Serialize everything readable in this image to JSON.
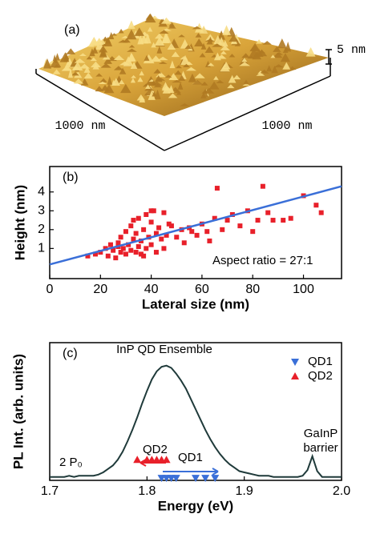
{
  "afm_image": {
    "panel_label": "(a)",
    "x_label": "1000 nm",
    "y_label": "1000 nm",
    "z_label": "5 nm"
  },
  "chart_data": [
    {
      "type": "scatter",
      "panel_label": "(b)",
      "x_label": "Lateral size (nm)",
      "y_label": "Height (nm)",
      "annotation": "Aspect ratio = 27:1",
      "xlim": [
        0,
        115
      ],
      "ylim": [
        -0.6,
        5.35
      ],
      "xticks": [
        0,
        20,
        40,
        60,
        80,
        100
      ],
      "yticks": [
        1,
        2,
        3,
        4
      ],
      "series": [
        {
          "color": "#e8202a",
          "x": [
            15,
            18,
            20,
            22,
            23,
            24,
            25,
            26,
            27,
            28,
            28,
            29,
            30,
            30,
            31,
            32,
            32,
            33,
            34,
            34,
            35,
            35,
            36,
            36,
            37,
            38,
            38,
            39,
            40,
            40,
            41,
            42,
            42,
            43,
            44,
            45,
            45,
            46,
            47,
            48,
            50,
            52,
            53,
            55,
            56,
            58,
            60,
            62,
            63,
            65,
            66,
            68,
            70,
            72,
            75,
            78,
            80,
            82,
            84,
            86,
            88,
            92,
            95,
            100,
            105,
            107,
            40,
            33,
            27,
            37
          ],
          "values": [
            0.6,
            0.7,
            0.8,
            1.0,
            0.6,
            1.2,
            0.9,
            0.5,
            1.3,
            0.8,
            1.6,
            1.0,
            0.7,
            1.9,
            1.2,
            0.9,
            2.2,
            1.5,
            0.8,
            1.8,
            1.1,
            2.6,
            0.7,
            1.4,
            2.0,
            1.0,
            2.8,
            1.6,
            1.2,
            2.4,
            3.0,
            1.8,
            0.8,
            2.1,
            1.5,
            2.9,
            1.0,
            1.7,
            2.3,
            2.2,
            1.6,
            2.0,
            1.3,
            2.1,
            1.9,
            1.7,
            2.3,
            1.9,
            1.4,
            2.6,
            4.2,
            2.0,
            2.5,
            2.8,
            2.2,
            3.0,
            1.9,
            2.5,
            4.3,
            2.9,
            2.5,
            2.5,
            2.6,
            3.8,
            3.3,
            2.9,
            3.0,
            2.5,
            1.1,
            0.6
          ]
        }
      ],
      "fit_line": {
        "color": "#3a6fd8",
        "x": [
          0,
          115
        ],
        "values": [
          0.15,
          4.3
        ]
      }
    },
    {
      "type": "line",
      "panel_label": "(c)",
      "x_label": "Energy (eV)",
      "y_label": "PL Int. (arb. units)",
      "annotations": [
        "InP QD Ensemble",
        "GaInP",
        "barrier",
        "2 P₀"
      ],
      "xlim": [
        1.7,
        2.0
      ],
      "ylim": [
        0,
        1.2
      ],
      "xticks": [
        1.7,
        1.8,
        1.9,
        {
          "value": 2.0,
          "label": "2.0"
        }
      ],
      "spectrum": {
        "color": "#1f3a3a",
        "x": [
          1.7,
          1.705,
          1.71,
          1.715,
          1.72,
          1.725,
          1.73,
          1.735,
          1.74,
          1.745,
          1.75,
          1.755,
          1.76,
          1.765,
          1.77,
          1.775,
          1.78,
          1.785,
          1.79,
          1.795,
          1.8,
          1.805,
          1.81,
          1.815,
          1.82,
          1.825,
          1.83,
          1.835,
          1.84,
          1.845,
          1.85,
          1.855,
          1.86,
          1.865,
          1.87,
          1.875,
          1.88,
          1.885,
          1.89,
          1.895,
          1.9,
          1.905,
          1.91,
          1.915,
          1.92,
          1.925,
          1.93,
          1.935,
          1.94,
          1.945,
          1.95,
          1.955,
          1.96,
          1.965,
          1.97,
          1.975,
          1.98,
          1.985,
          1.99,
          1.995,
          2.0
        ],
        "values": [
          0.03,
          0.03,
          0.03,
          0.03,
          0.04,
          0.03,
          0.04,
          0.04,
          0.04,
          0.04,
          0.05,
          0.07,
          0.1,
          0.13,
          0.18,
          0.25,
          0.34,
          0.44,
          0.55,
          0.67,
          0.78,
          0.88,
          0.95,
          0.99,
          1.0,
          0.98,
          0.93,
          0.87,
          0.8,
          0.71,
          0.62,
          0.53,
          0.44,
          0.36,
          0.29,
          0.23,
          0.18,
          0.14,
          0.11,
          0.08,
          0.07,
          0.06,
          0.05,
          0.04,
          0.04,
          0.04,
          0.03,
          0.03,
          0.03,
          0.03,
          0.03,
          0.03,
          0.04,
          0.09,
          0.21,
          0.08,
          0.03,
          0.03,
          0.03,
          0.03,
          0.03
        ]
      },
      "series": [
        {
          "name": "QD1",
          "color": "#3a6fd8",
          "marker": "triangle-down",
          "x": [
            1.815,
            1.82,
            1.825,
            1.83,
            1.85,
            1.86,
            1.87
          ],
          "values": [
            0.02,
            0.02,
            0.02,
            0.02,
            0.02,
            0.02,
            0.02
          ]
        },
        {
          "name": "QD2",
          "color": "#e8202a",
          "marker": "triangle-up",
          "x": [
            1.79,
            1.8,
            1.805,
            1.81,
            1.815,
            1.82
          ],
          "values": [
            0.18,
            0.18,
            0.18,
            0.18,
            0.18,
            0.18
          ]
        }
      ],
      "legend": "top-right"
    }
  ]
}
